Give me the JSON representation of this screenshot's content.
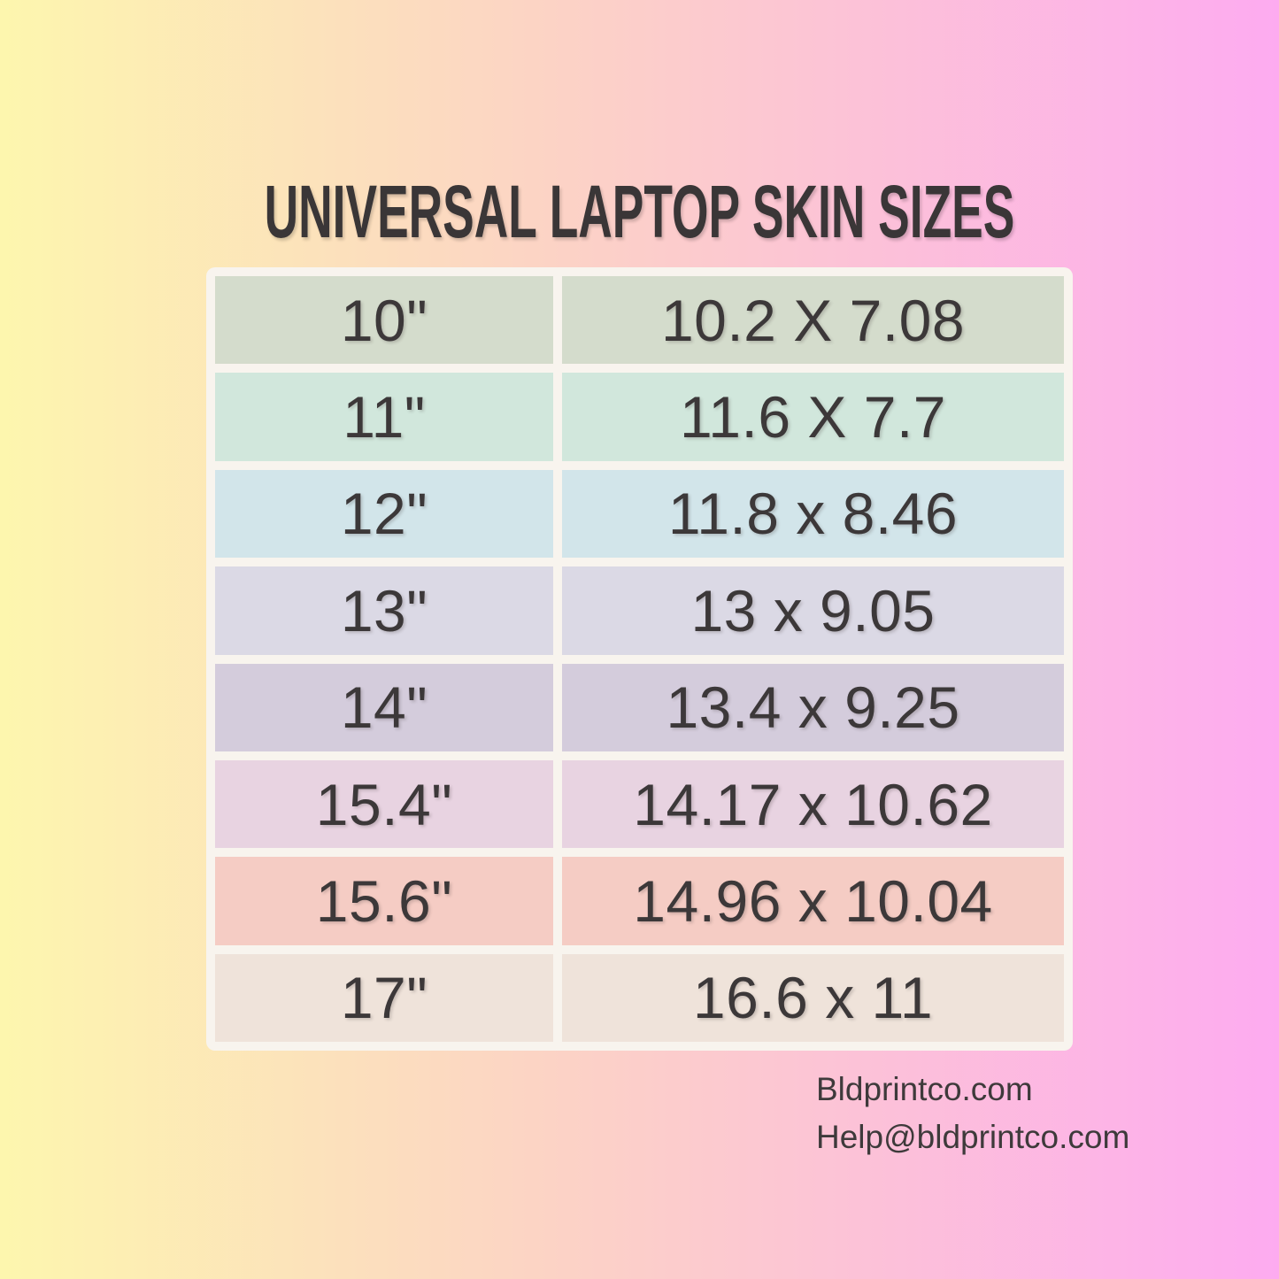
{
  "title": "UNIVERSAL LAPTOP SKIN SIZES",
  "colors": {
    "background_gradient": [
      "#fdf6ae",
      "#fcd3c5",
      "#fdabf0"
    ],
    "table_frame": "#f8f4ee",
    "title_text": "#3a3637",
    "cell_text": "#3c3839"
  },
  "table": {
    "rows": [
      {
        "size": "10\"",
        "dimensions": "10.2 X 7.08",
        "row_color": "#d4dccc"
      },
      {
        "size": "11\"",
        "dimensions": "11.6 X 7.7",
        "row_color": "#d1e7dc"
      },
      {
        "size": "12\"",
        "dimensions": "11.8 x 8.46",
        "row_color": "#d2e5ea"
      },
      {
        "size": "13\"",
        "dimensions": "13 x 9.05",
        "row_color": "#dbd9e5"
      },
      {
        "size": "14\"",
        "dimensions": "13.4 x 9.25",
        "row_color": "#d4ccdc"
      },
      {
        "size": "15.4\"",
        "dimensions": "14.17 x 10.62",
        "row_color": "#e8d3e1"
      },
      {
        "size": "15.6\"",
        "dimensions": "14.96 x 10.04",
        "row_color": "#f5ccc4"
      },
      {
        "size": "17\"",
        "dimensions": "16.6 x 11",
        "row_color": "#efe3da"
      }
    ]
  },
  "footer": {
    "website": "Bldprintco.com",
    "email": "Help@bldprintco.com"
  },
  "chart_data": {
    "type": "table",
    "title": "UNIVERSAL LAPTOP SKIN SIZES",
    "columns": [
      "screen_size",
      "skin_dimensions_inches"
    ],
    "rows": [
      [
        "10\"",
        "10.2 X 7.08"
      ],
      [
        "11\"",
        "11.6 X 7.7"
      ],
      [
        "12\"",
        "11.8 x 8.46"
      ],
      [
        "13\"",
        "13 x 9.05"
      ],
      [
        "14\"",
        "13.4 x 9.25"
      ],
      [
        "15.4\"",
        "14.17 x 10.62"
      ],
      [
        "15.6\"",
        "14.96 x 10.04"
      ],
      [
        "17\"",
        "16.6 x 11"
      ]
    ],
    "legend_position": "none",
    "grid": false
  }
}
